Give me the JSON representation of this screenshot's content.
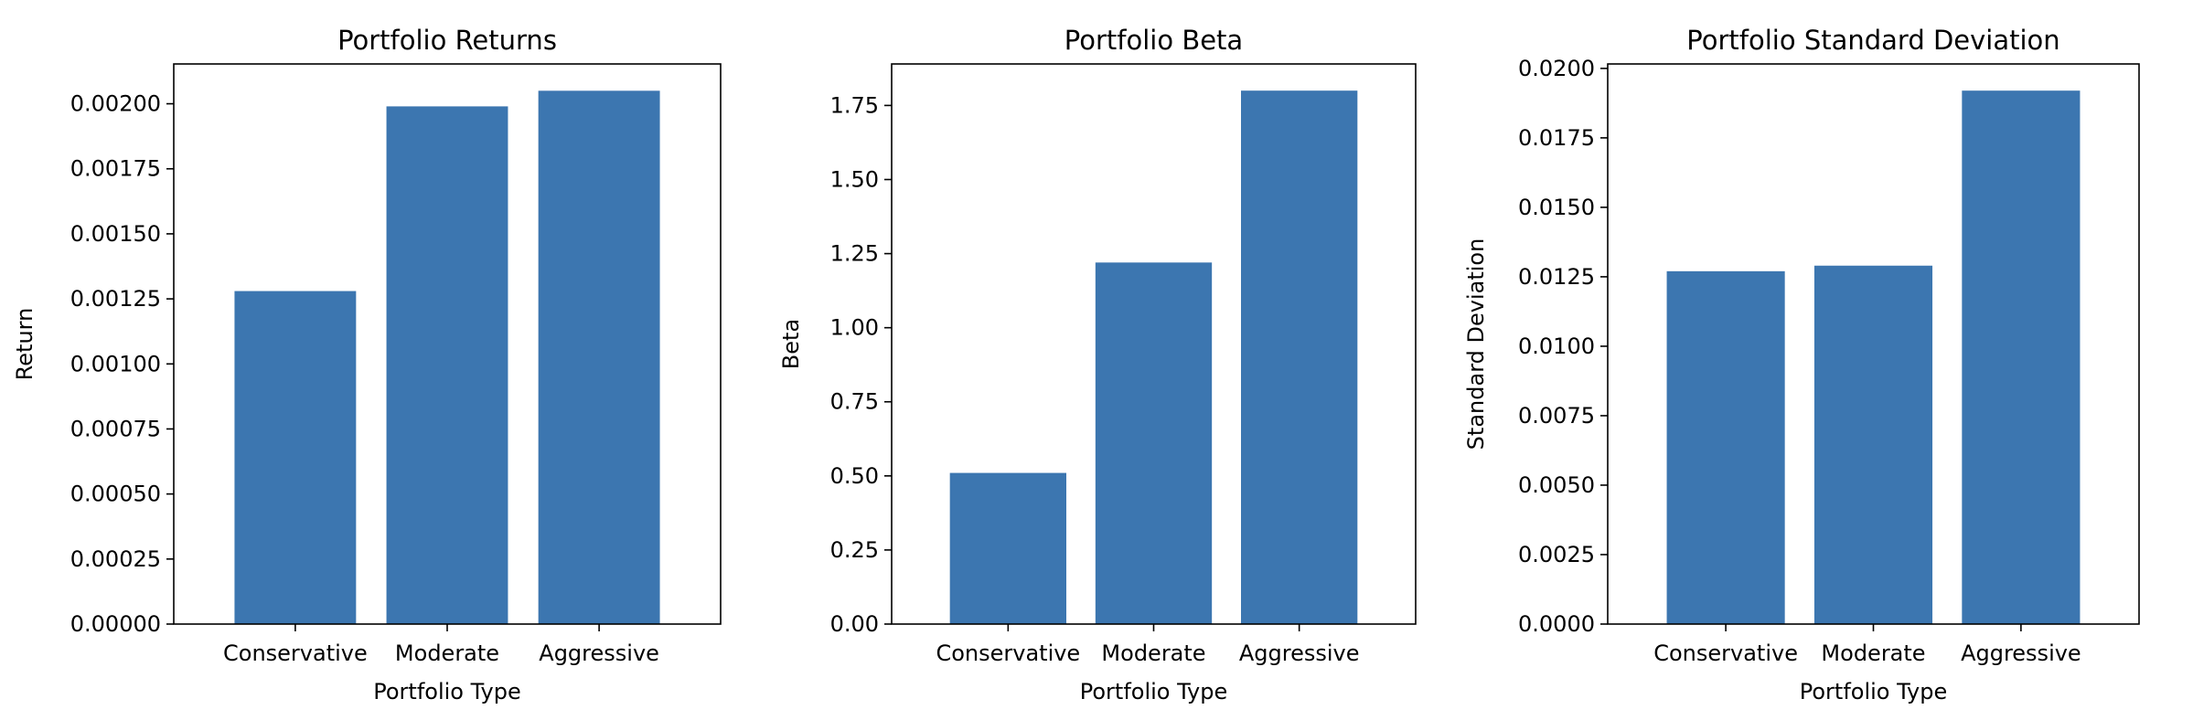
{
  "chart_data": [
    {
      "type": "bar",
      "title": "Portfolio Returns",
      "xlabel": "Portfolio Type",
      "ylabel": "Return",
      "categories": [
        "Conservative",
        "Moderate",
        "Aggressive"
      ],
      "values": [
        0.00128,
        0.00199,
        0.00205
      ],
      "ylim": [
        0,
        0.002153
      ],
      "yticks": [
        "0.00000",
        "0.00025",
        "0.00050",
        "0.00075",
        "0.00100",
        "0.00125",
        "0.00150",
        "0.00175",
        "0.00200"
      ],
      "ytick_values": [
        0,
        0.00025,
        0.0005,
        0.00075,
        0.001,
        0.00125,
        0.0015,
        0.00175,
        0.002
      ],
      "color": "#3c76b0",
      "grid": false
    },
    {
      "type": "bar",
      "title": "Portfolio Beta",
      "xlabel": "Portfolio Type",
      "ylabel": "Beta",
      "categories": [
        "Conservative",
        "Moderate",
        "Aggressive"
      ],
      "values": [
        0.51,
        1.22,
        1.8
      ],
      "ylim": [
        0,
        1.89
      ],
      "yticks": [
        "0.00",
        "0.25",
        "0.50",
        "0.75",
        "1.00",
        "1.25",
        "1.50",
        "1.75"
      ],
      "ytick_values": [
        0,
        0.25,
        0.5,
        0.75,
        1.0,
        1.25,
        1.5,
        1.75
      ],
      "color": "#3c76b0",
      "grid": false
    },
    {
      "type": "bar",
      "title": "Portfolio Standard Deviation",
      "xlabel": "Portfolio Type",
      "ylabel": "Standard Deviation",
      "categories": [
        "Conservative",
        "Moderate",
        "Aggressive"
      ],
      "values": [
        0.0127,
        0.0129,
        0.0192
      ],
      "ylim": [
        0,
        0.02016
      ],
      "yticks": [
        "0.0000",
        "0.0025",
        "0.0050",
        "0.0075",
        "0.0100",
        "0.0125",
        "0.0150",
        "0.0175",
        "0.0200"
      ],
      "ytick_values": [
        0,
        0.0025,
        0.005,
        0.0075,
        0.01,
        0.0125,
        0.015,
        0.0175,
        0.02
      ],
      "color": "#3c76b0",
      "grid": false
    }
  ]
}
